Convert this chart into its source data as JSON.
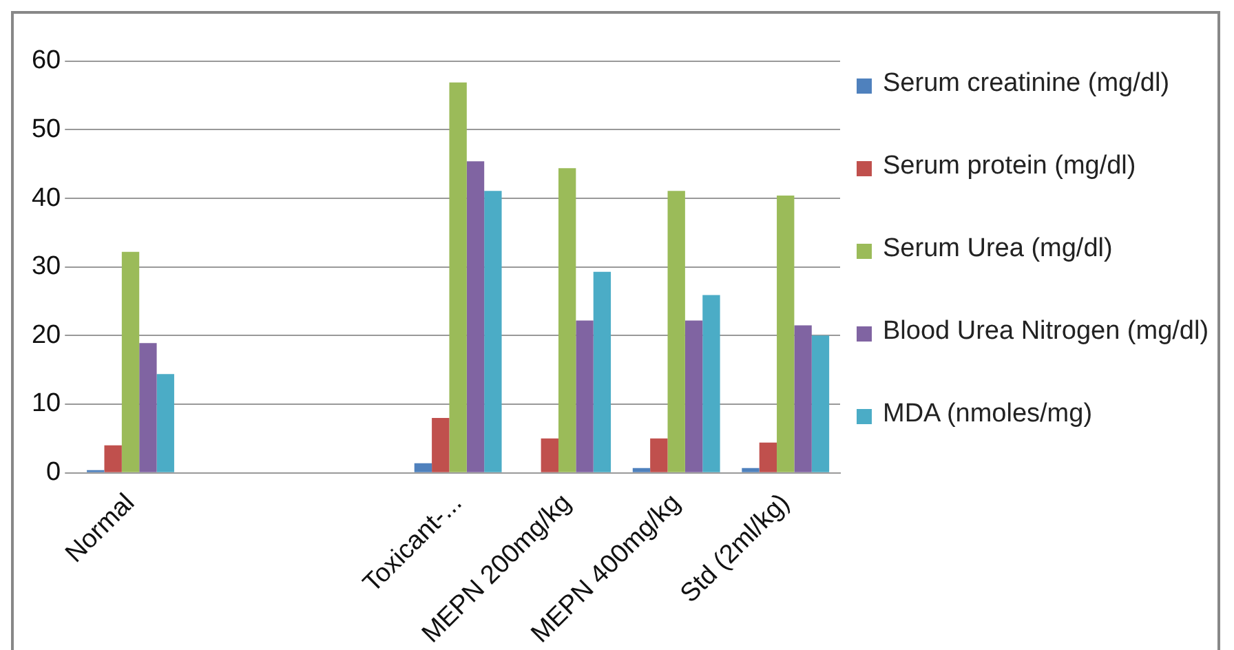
{
  "chart_data": {
    "type": "bar",
    "categories": [
      "Normal",
      null,
      null,
      "Toxicant-...",
      "MEPN 200mg/kg",
      "MEPN 400mg/kg",
      "Std (2ml/kg)"
    ],
    "series": [
      {
        "name": "Serum creatinine (mg/dl)",
        "color": "#4f81bd",
        "values": [
          0.4,
          null,
          null,
          1.4,
          0,
          0.7,
          0.7
        ]
      },
      {
        "name": "Serum protein (mg/dl)",
        "color": "#c0504d",
        "values": [
          4.0,
          null,
          null,
          8.0,
          5.0,
          5.0,
          4.4
        ]
      },
      {
        "name": "Serum Urea (mg/dl)",
        "color": "#9bbb59",
        "values": [
          32.2,
          null,
          null,
          56.9,
          44.4,
          41.1,
          40.4
        ]
      },
      {
        "name": "Blood Urea Nitrogen (mg/dl)",
        "color": "#8064a2",
        "values": [
          18.9,
          null,
          null,
          45.4,
          22.2,
          22.2,
          21.5
        ]
      },
      {
        "name": "MDA (nmoles/mg)",
        "color": "#4bacc6",
        "values": [
          14.4,
          null,
          null,
          41.1,
          29.3,
          25.9,
          20.0
        ]
      }
    ],
    "ylim": [
      0,
      60
    ],
    "yticks": [
      0,
      10,
      20,
      30,
      40,
      50,
      60
    ],
    "grid": "y",
    "legend": "right"
  }
}
